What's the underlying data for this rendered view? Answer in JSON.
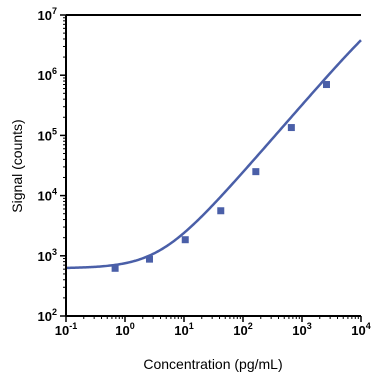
{
  "chart_data": {
    "type": "scatter",
    "title": "",
    "xlabel": "Concentration (pg/mL)",
    "ylabel": "Signal (counts)",
    "x_scale": "log",
    "y_scale": "log",
    "xlim": [
      0.1,
      10000
    ],
    "ylim": [
      100,
      10000000
    ],
    "x_tick_labels": [
      {
        "base": "10",
        "exp": "-1"
      },
      {
        "base": "10",
        "exp": "0"
      },
      {
        "base": "10",
        "exp": "1"
      },
      {
        "base": "10",
        "exp": "2"
      },
      {
        "base": "10",
        "exp": "3"
      },
      {
        "base": "10",
        "exp": "4"
      }
    ],
    "y_tick_labels": [
      {
        "base": "10",
        "exp": "2"
      },
      {
        "base": "10",
        "exp": "3"
      },
      {
        "base": "10",
        "exp": "4"
      },
      {
        "base": "10",
        "exp": "5"
      },
      {
        "base": "10",
        "exp": "6"
      },
      {
        "base": "10",
        "exp": "7"
      }
    ],
    "grid": false,
    "series": [
      {
        "type": "scatter",
        "color": "#4a5fa8",
        "marker": "square",
        "x": [
          0.68,
          2.6,
          10.5,
          42,
          165,
          660,
          2600
        ],
        "y": [
          620,
          880,
          1850,
          5600,
          25000,
          135000,
          700000
        ]
      },
      {
        "type": "line",
        "color": "#4a5fa8",
        "fit": "4PL",
        "params": {
          "bottom": 620,
          "top": 30000000,
          "ec50": 55000,
          "hill": 1.13
        }
      }
    ]
  }
}
